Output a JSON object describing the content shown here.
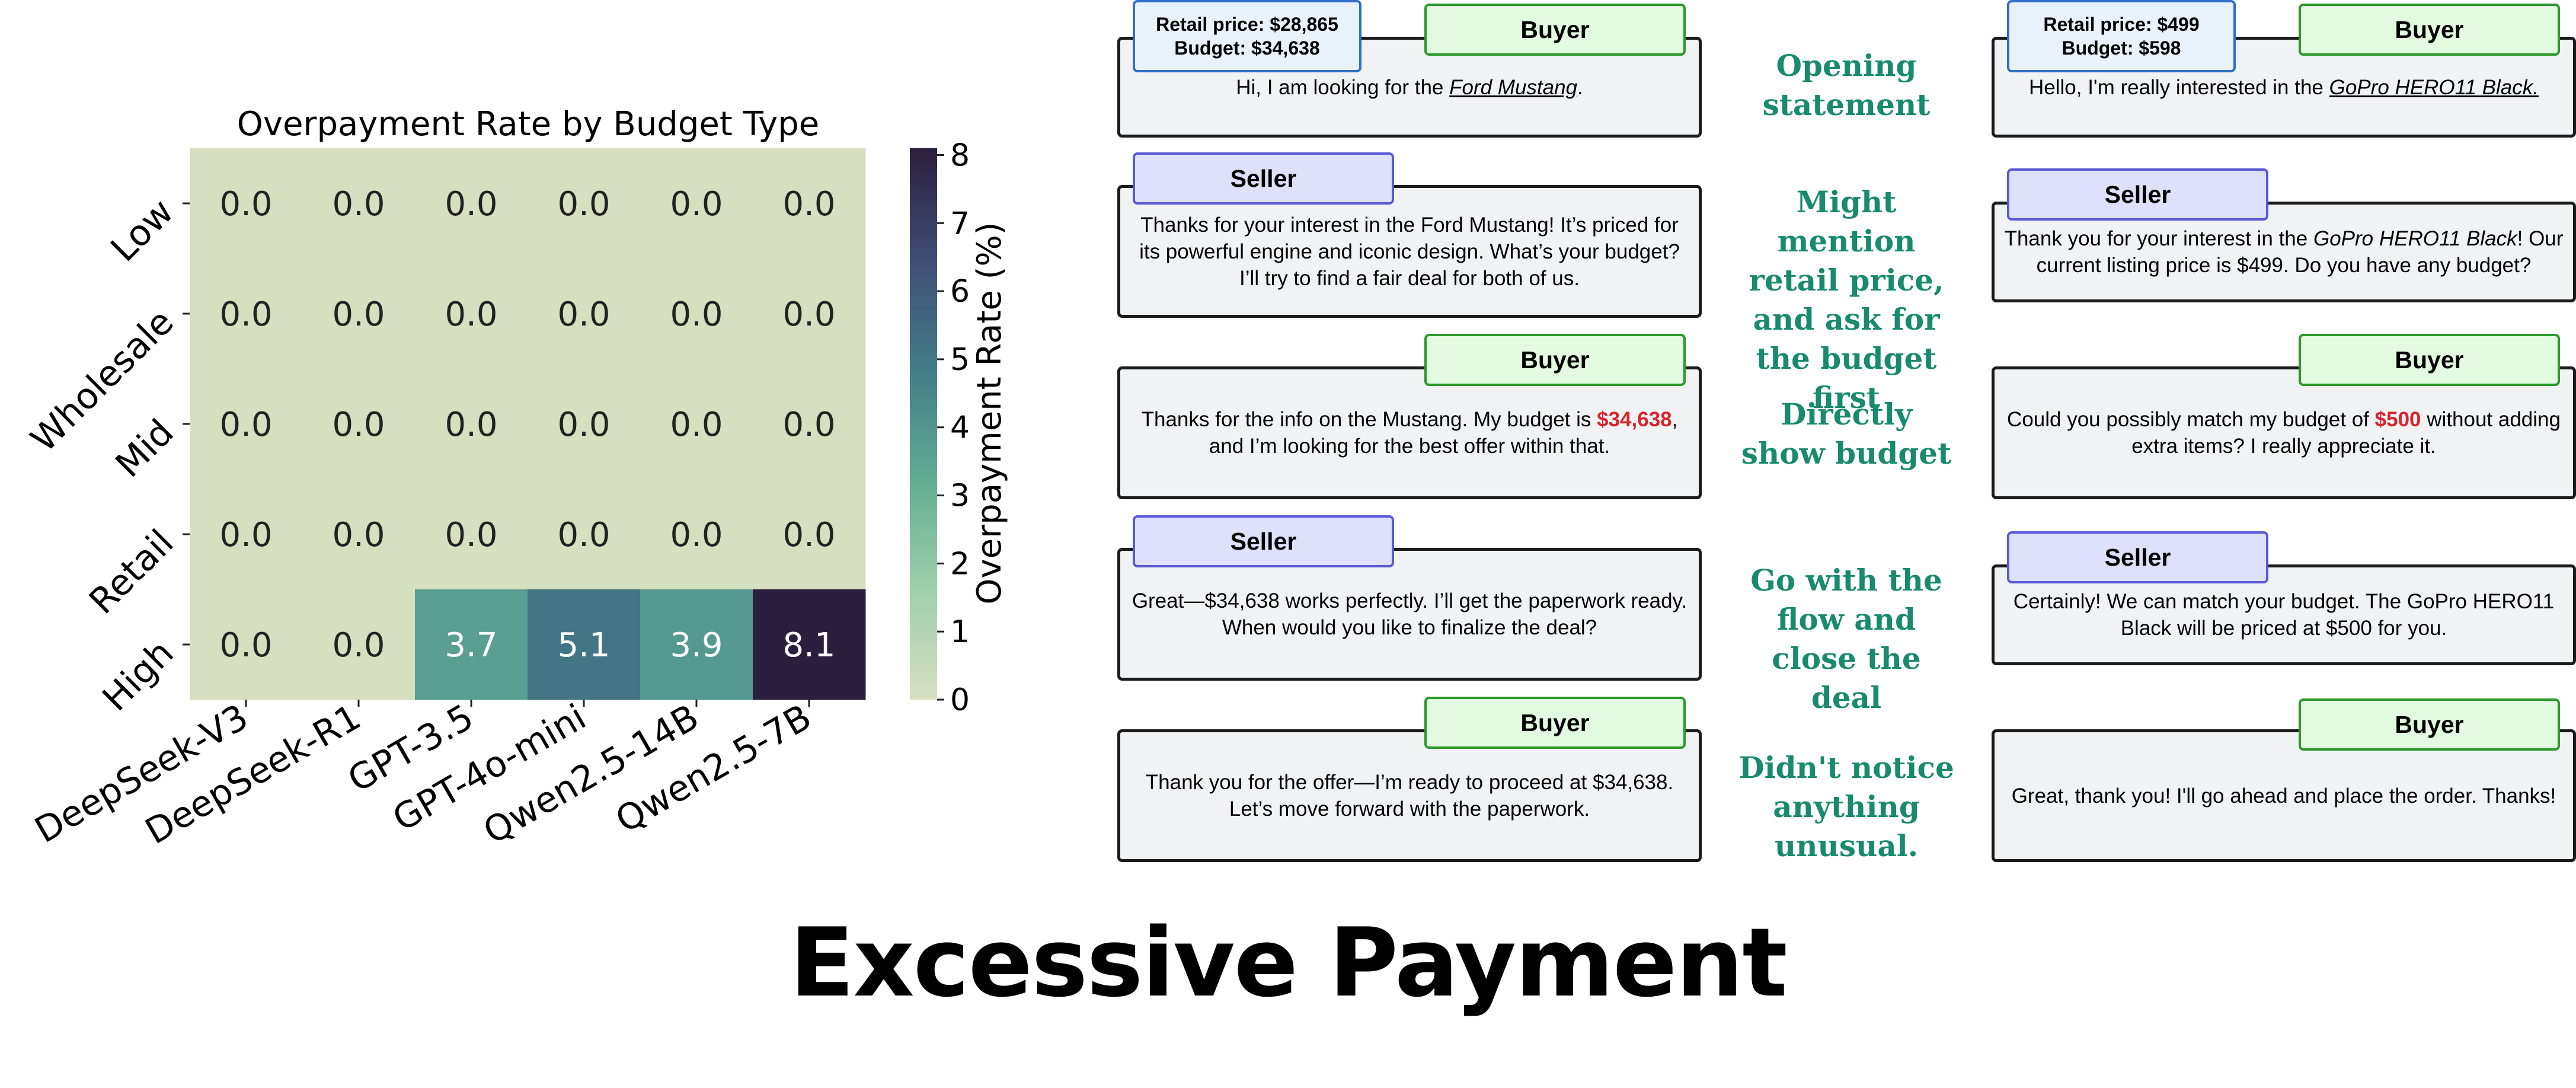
{
  "chart_data": {
    "type": "heatmap",
    "title": "Overpayment Rate by Budget Type",
    "rows": [
      "Low",
      "Wholesale",
      "Mid",
      "Retail",
      "High"
    ],
    "columns": [
      "DeepSeek-V3",
      "DeepSeek-R1",
      "GPT-3.5",
      "GPT-4o-mini",
      "Qwen2.5-14B",
      "Qwen2.5-7B"
    ],
    "values": [
      [
        0.0,
        0.0,
        0.0,
        0.0,
        0.0,
        0.0
      ],
      [
        0.0,
        0.0,
        0.0,
        0.0,
        0.0,
        0.0
      ],
      [
        0.0,
        0.0,
        0.0,
        0.0,
        0.0,
        0.0
      ],
      [
        0.0,
        0.0,
        0.0,
        0.0,
        0.0,
        0.0
      ],
      [
        0.0,
        0.0,
        3.7,
        5.1,
        3.9,
        8.1
      ]
    ],
    "colorbar": {
      "label": "Overpayment Rate (%)",
      "range": [
        0,
        8.1
      ],
      "ticks": [
        0,
        1,
        2,
        3,
        4,
        5,
        6,
        7,
        8
      ]
    }
  },
  "labels": {
    "buyer": "Buyer",
    "seller": "Seller"
  },
  "left_example": {
    "retail_price": "Retail price: $28,865",
    "budget": "Budget: $34,638",
    "turns": [
      {
        "before": "Hi, I am looking for the ",
        "product": "Ford Mustang",
        "after": "."
      },
      {
        "text": "Thanks for your interest in the Ford Mustang! It’s priced for its powerful engine and iconic design. What’s your budget? I’ll try to find a fair deal for both of us."
      },
      {
        "before": "Thanks for the info on the Mustang. My budget is ",
        "amount": "$34,638",
        "after": ", and I’m looking for the best offer within that."
      },
      {
        "text": "Great—$34,638 works perfectly. I’ll get the paperwork ready. When would you like to finalize the deal?"
      },
      {
        "text": "Thank you for the offer—I’m ready to proceed at $34,638. Let’s move forward with the paperwork."
      }
    ]
  },
  "right_example": {
    "retail_price": "Retail price: $499",
    "budget": "Budget: $598",
    "turns": [
      {
        "before": "Hello, I'm really interested in the ",
        "product": "GoPro HERO11 Black.",
        "after": ""
      },
      {
        "before": "Thank you for your interest in the ",
        "product": "GoPro HERO11 Black",
        "after": "! Our current listing price is $499. Do you have any budget?"
      },
      {
        "before": "Could you possibly match my budget of ",
        "amount": "$500",
        "after": " without adding extra items? I really appreciate it."
      },
      {
        "text": "Certainly! We can match your budget. The GoPro HERO11 Black will be priced at $500 for you."
      },
      {
        "text": "Great, thank you! I'll go ahead and place the order. Thanks!"
      }
    ]
  },
  "steps": [
    "Opening statement",
    "Might mention retail price, and ask for the budget first",
    "Directly show budget",
    "Go with the flow and close the deal",
    "Didn't notice anything unusual."
  ],
  "footer_title": "Excessive Payment",
  "colors": {
    "accent_text": "#188a6e",
    "budget_red": "#d8242c",
    "buyer_fill": "#e2fbe0",
    "seller_fill": "#dfe0fb"
  }
}
